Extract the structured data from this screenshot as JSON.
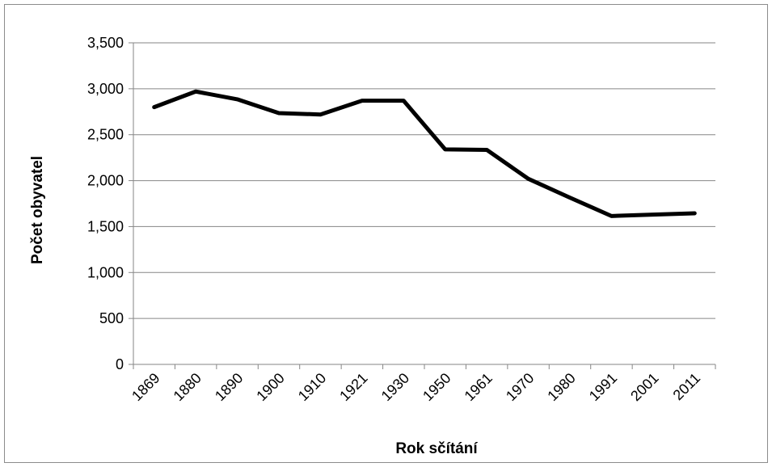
{
  "chart_data": {
    "type": "line",
    "title": "",
    "xlabel": "Rok sčítání",
    "ylabel": "Počet obyvatel",
    "categories": [
      "1869",
      "1880",
      "1890",
      "1900",
      "1910",
      "1921",
      "1930",
      "1950",
      "1961",
      "1970",
      "1980",
      "1991",
      "2001",
      "2011"
    ],
    "series": [
      {
        "values": [
          2800,
          2970,
          2885,
          2735,
          2720,
          2870,
          2870,
          2340,
          2335,
          2020,
          1815,
          1615,
          1630,
          1645
        ]
      }
    ],
    "ylim": [
      0,
      3500
    ],
    "yticks": [
      0,
      500,
      1000,
      1500,
      2000,
      2500,
      3000,
      3500
    ],
    "ytick_labels": [
      "0",
      "500",
      "1,000",
      "1,500",
      "2,000",
      "2,500",
      "3,000",
      "3,500"
    ],
    "grid": true,
    "legend": "none",
    "colors": {
      "line": "#000000",
      "grid": "#868686",
      "frame": "#8c8c8c"
    }
  }
}
